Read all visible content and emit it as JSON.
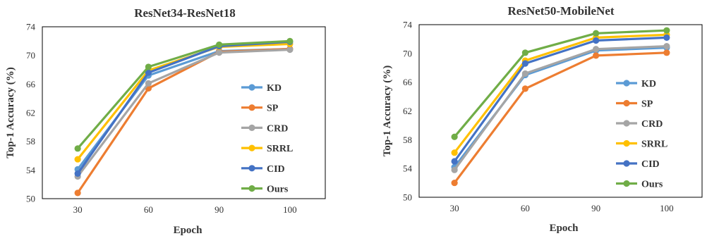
{
  "chart_data": [
    {
      "type": "line",
      "title": "ResNet34-ResNet18",
      "xlabel": "Epoch",
      "ylabel": "Top-1 Accuracy (%)",
      "categories": [
        "30",
        "60",
        "90",
        "100"
      ],
      "ylim": [
        50,
        74
      ],
      "yticks": [
        50,
        54,
        58,
        62,
        66,
        70,
        74
      ],
      "grid": false,
      "legend": "right",
      "series": [
        {
          "name": "KD",
          "color": "#5B9BD5",
          "values": [
            54.1,
            67.2,
            70.6,
            70.9
          ]
        },
        {
          "name": "SP",
          "color": "#ED7D31",
          "values": [
            50.8,
            65.4,
            70.5,
            70.9
          ]
        },
        {
          "name": "CRD",
          "color": "#A5A5A5",
          "values": [
            53.1,
            66.1,
            70.4,
            70.8
          ]
        },
        {
          "name": "SRRL",
          "color": "#FFC000",
          "values": [
            55.5,
            67.9,
            71.2,
            71.6
          ]
        },
        {
          "name": "CID",
          "color": "#4472C4",
          "values": [
            53.5,
            67.6,
            71.3,
            71.9
          ]
        },
        {
          "name": "Ours",
          "color": "#70AD47",
          "values": [
            57.0,
            68.4,
            71.5,
            72.0
          ]
        }
      ]
    },
    {
      "type": "line",
      "title": "ResNet50-MobileNet",
      "xlabel": "Epoch",
      "ylabel": "Top-1 Accuracy (%)",
      "categories": [
        "30",
        "60",
        "90",
        "100"
      ],
      "ylim": [
        50,
        74
      ],
      "yticks": [
        50,
        54,
        58,
        62,
        66,
        70,
        74
      ],
      "grid": false,
      "legend": "right",
      "series": [
        {
          "name": "KD",
          "color": "#5B9BD5",
          "values": [
            54.2,
            67.0,
            70.4,
            70.8
          ]
        },
        {
          "name": "SP",
          "color": "#ED7D31",
          "values": [
            52.0,
            65.1,
            69.7,
            70.1
          ]
        },
        {
          "name": "CRD",
          "color": "#A5A5A5",
          "values": [
            53.8,
            67.2,
            70.6,
            71.0
          ]
        },
        {
          "name": "SRRL",
          "color": "#FFC000",
          "values": [
            56.2,
            69.0,
            72.2,
            72.6
          ]
        },
        {
          "name": "CID",
          "color": "#4472C4",
          "values": [
            55.0,
            68.6,
            71.8,
            72.2
          ]
        },
        {
          "name": "Ours",
          "color": "#70AD47",
          "values": [
            58.4,
            70.1,
            72.8,
            73.2
          ]
        }
      ]
    }
  ]
}
